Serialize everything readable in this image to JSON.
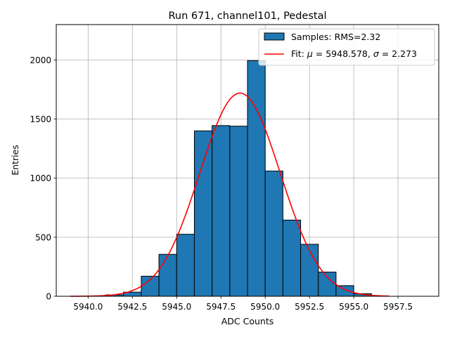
{
  "chart_data": {
    "type": "bar",
    "title": "Run 671, channel101, Pedestal",
    "xlabel": "ADC Counts",
    "ylabel": "Entries",
    "xlim": [
      5938.2,
      5959.8
    ],
    "ylim": [
      0,
      2300
    ],
    "xticks": [
      5940.0,
      5942.5,
      5945.0,
      5947.5,
      5950.0,
      5952.5,
      5955.0,
      5957.5
    ],
    "xtick_labels": [
      "5940.0",
      "5942.5",
      "5945.0",
      "5947.5",
      "5950.0",
      "5952.5",
      "5955.0",
      "5957.5"
    ],
    "yticks": [
      0,
      500,
      1000,
      1500,
      2000
    ],
    "ytick_labels": [
      "0",
      "500",
      "1000",
      "1500",
      "2000"
    ],
    "grid": true,
    "legend_position": "top-right",
    "histogram": {
      "name": "Samples: RMS=2.32",
      "color": "#1f77b4",
      "bin_edges": [
        5941,
        5942,
        5943,
        5944,
        5945,
        5946,
        5947,
        5948,
        5949,
        5950,
        5951,
        5952,
        5953,
        5954,
        5955,
        5956
      ],
      "counts": [
        12,
        35,
        170,
        355,
        525,
        1400,
        1445,
        1440,
        1995,
        1060,
        645,
        440,
        205,
        90,
        22
      ]
    },
    "fit": {
      "name": "Fit: $\\mu$ = 5948.578, $\\sigma$ = 2.273",
      "legend_parts": [
        "Fit: ",
        "μ",
        " = 5948.578, ",
        "σ",
        " = 2.273"
      ],
      "color": "#ff0000",
      "mu": 5948.578,
      "sigma": 2.273,
      "amplitude": 1720,
      "x_range": [
        5939,
        5957
      ]
    }
  }
}
